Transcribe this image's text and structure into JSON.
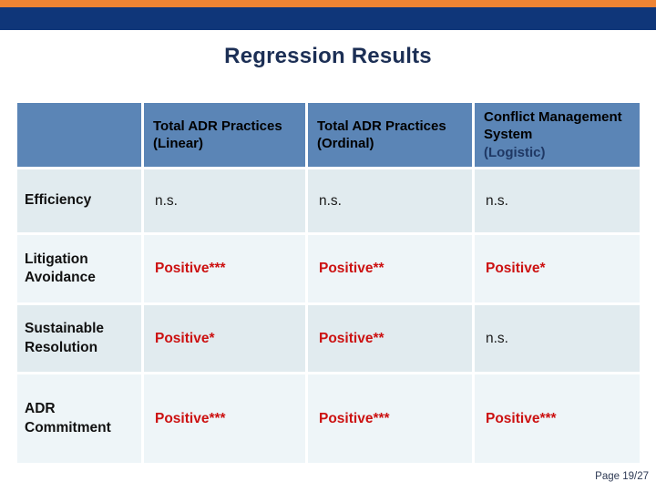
{
  "theme": {
    "top_bar_color": "#EE8434",
    "title_bar_color": "#0F3679",
    "title_color": "#1C2F55",
    "table_header_bg": "#5B85B6",
    "row_band_dark": "#E1EBEF",
    "row_band_light": "#EEF5F8",
    "significant_color": "#CC1111",
    "neutral_color": "#1A1A1A",
    "logistic_subtitle_color": "#1F3864"
  },
  "slide": {
    "title": "Regression Results",
    "page_label": "Page 19/27"
  },
  "table": {
    "header": [
      {
        "title": "",
        "subtitle": "",
        "subtitle_color": "#000000"
      },
      {
        "title": "Total ADR Practices",
        "subtitle": "(Linear)",
        "subtitle_color": "#000000"
      },
      {
        "title": "Total ADR Practices",
        "subtitle": "(Ordinal)",
        "subtitle_color": "#000000"
      },
      {
        "title": "Conflict Management System",
        "subtitle": "(Logistic)",
        "subtitle_color": "#1F3864"
      }
    ],
    "rows": [
      {
        "label": "Efficiency",
        "values": [
          {
            "text": "n.s.",
            "color": "#1A1A1A",
            "weight": "400"
          },
          {
            "text": "n.s.",
            "color": "#1A1A1A",
            "weight": "400"
          },
          {
            "text": "n.s.",
            "color": "#1A1A1A",
            "weight": "400"
          }
        ]
      },
      {
        "label": "Litigation Avoidance",
        "values": [
          {
            "text": "Positive***",
            "color": "#CC1111",
            "weight": "700"
          },
          {
            "text": "Positive**",
            "color": "#CC1111",
            "weight": "700"
          },
          {
            "text": "Positive*",
            "color": "#CC1111",
            "weight": "700"
          }
        ]
      },
      {
        "label": "Sustainable Resolution",
        "values": [
          {
            "text": "Positive*",
            "color": "#CC1111",
            "weight": "700"
          },
          {
            "text": "Positive**",
            "color": "#CC1111",
            "weight": "700"
          },
          {
            "text": "n.s.",
            "color": "#1A1A1A",
            "weight": "400"
          }
        ]
      },
      {
        "label": "ADR Commitment",
        "values": [
          {
            "text": "Positive***",
            "color": "#CC1111",
            "weight": "700"
          },
          {
            "text": "Positive***",
            "color": "#CC1111",
            "weight": "700"
          },
          {
            "text": "Positive***",
            "color": "#CC1111",
            "weight": "700"
          }
        ]
      }
    ]
  }
}
